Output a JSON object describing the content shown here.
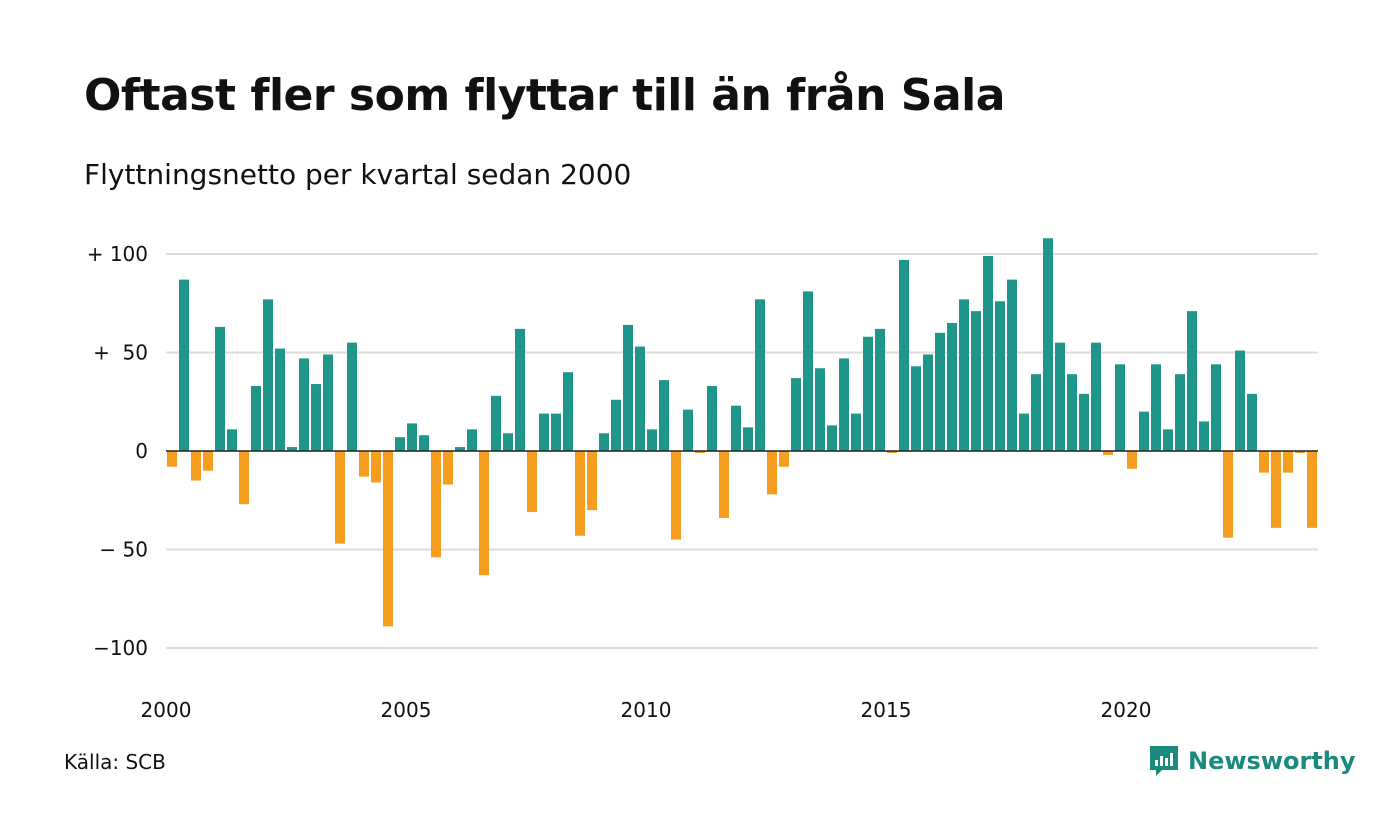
{
  "title": "Oftast fler som flyttar till än från Sala",
  "subtitle": "Flyttningsnetto per kvartal sedan 2000",
  "source": "Källa: SCB",
  "brand": "Newsworthy",
  "colors": {
    "positive": "#1e968a",
    "negative": "#f59d1f",
    "grid": "#dddddd",
    "brand": "#1a8a7e"
  },
  "chart_data": {
    "type": "bar",
    "title": "Oftast fler som flyttar till än från Sala",
    "subtitle": "Flyttningsnetto per kvartal sedan 2000",
    "xlabel": "",
    "ylabel": "",
    "ylim": [
      -110,
      110
    ],
    "grid": true,
    "yticks": [
      {
        "value": 100,
        "label": "+ 100"
      },
      {
        "value": 50,
        "label": "+  50"
      },
      {
        "value": 0,
        "label": "0"
      },
      {
        "value": -50,
        "label": "− 50"
      },
      {
        "value": -100,
        "label": "−100"
      }
    ],
    "xticks": [
      {
        "year": 2000,
        "label": "2000"
      },
      {
        "year": 2005,
        "label": "2005"
      },
      {
        "year": 2010,
        "label": "2010"
      },
      {
        "year": 2015,
        "label": "2015"
      },
      {
        "year": 2020,
        "label": "2020"
      }
    ],
    "start_year": 2000,
    "quarters_per_year": 4,
    "values": [
      -8,
      87,
      -15,
      -10,
      63,
      11,
      -27,
      33,
      77,
      52,
      2,
      47,
      34,
      49,
      -47,
      55,
      -13,
      -16,
      -89,
      7,
      14,
      8,
      -54,
      -17,
      2,
      11,
      -63,
      28,
      9,
      62,
      -31,
      19,
      19,
      40,
      -43,
      -30,
      9,
      26,
      64,
      53,
      11,
      36,
      -45,
      21,
      -1,
      33,
      -34,
      23,
      12,
      77,
      -22,
      -8,
      37,
      81,
      42,
      13,
      47,
      19,
      58,
      62,
      -1,
      97,
      43,
      49,
      60,
      65,
      77,
      71,
      99,
      76,
      87,
      19,
      39,
      108,
      55,
      39,
      29,
      55,
      -2,
      44,
      -9,
      20,
      44,
      11,
      39,
      71,
      15,
      44,
      -44,
      51,
      29,
      -11,
      -39,
      -11,
      -1,
      -39
    ]
  }
}
